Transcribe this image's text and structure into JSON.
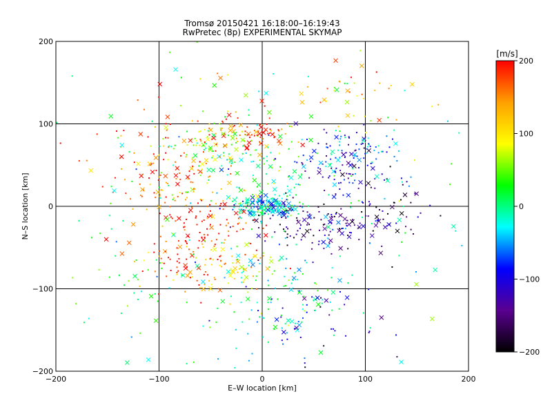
{
  "chart_data": {
    "type": "scatter",
    "title": "Tromsø 20150421 16:18:00–16:19:43",
    "subtitle": "RwPretec (8p) EXPERIMENTAL SKYMAP",
    "xlabel": "E–W location [km]",
    "ylabel": "N–S location [km]",
    "xlim": [
      -200,
      200
    ],
    "ylim": [
      -200,
      200
    ],
    "x_ticks": [
      "−200",
      "−100",
      "0",
      "100",
      "200"
    ],
    "y_ticks": [
      "−200",
      "−100",
      "0",
      "100",
      "200"
    ],
    "grid": true,
    "colorbar": {
      "label": "[m/s]",
      "range": [
        -200,
        200
      ],
      "ticks": [
        "200",
        "100",
        "0",
        "−100",
        "−200"
      ],
      "colormap": [
        "#000000",
        "#5a0090",
        "#0000ff",
        "#00ffff",
        "#00ff00",
        "#ffff00",
        "#ffa000",
        "#ff0000"
      ]
    },
    "series_summary": [
      {
        "marker": "cross",
        "note": "larger x markers"
      },
      {
        "marker": "dot",
        "note": "small point markers"
      }
    ],
    "clusters": [
      {
        "x": 0,
        "y": 0,
        "sx": 18,
        "sy": 6,
        "v": -20,
        "n": 120
      },
      {
        "x": 15,
        "y": -2,
        "sx": 10,
        "sy": 8,
        "v": -40,
        "n": 60
      },
      {
        "x": -45,
        "y": 75,
        "sx": 25,
        "sy": 25,
        "v": 50,
        "n": 90
      },
      {
        "x": -10,
        "y": 88,
        "sx": 22,
        "sy": 12,
        "v": 175,
        "n": 80
      },
      {
        "x": -105,
        "y": 60,
        "sx": 30,
        "sy": 35,
        "v": 170,
        "n": 90
      },
      {
        "x": -75,
        "y": 25,
        "sx": 25,
        "sy": 20,
        "v": 120,
        "n": 60
      },
      {
        "x": 75,
        "y": 50,
        "sx": 30,
        "sy": 25,
        "v": -110,
        "n": 90
      },
      {
        "x": 95,
        "y": 65,
        "sx": 20,
        "sy": 15,
        "v": -60,
        "n": 60
      },
      {
        "x": 40,
        "y": -20,
        "sx": 30,
        "sy": 15,
        "v": -170,
        "n": 70
      },
      {
        "x": 90,
        "y": -25,
        "sx": 30,
        "sy": 20,
        "v": -130,
        "n": 60
      },
      {
        "x": -45,
        "y": -20,
        "sx": 25,
        "sy": 15,
        "v": 185,
        "n": 70
      },
      {
        "x": -75,
        "y": -70,
        "sx": 25,
        "sy": 20,
        "v": 175,
        "n": 80
      },
      {
        "x": -25,
        "y": -75,
        "sx": 25,
        "sy": 20,
        "v": 100,
        "n": 60
      },
      {
        "x": 15,
        "y": -115,
        "sx": 30,
        "sy": 35,
        "v": -10,
        "n": 90
      },
      {
        "x": 0,
        "y": 35,
        "sx": 30,
        "sy": 25,
        "v": 20,
        "n": 50
      },
      {
        "x": 110,
        "y": -10,
        "sx": 25,
        "sy": 25,
        "v": -150,
        "n": 40
      },
      {
        "x": 0,
        "y": 0,
        "sx": 120,
        "sy": 120,
        "v": 0,
        "n": 180
      },
      {
        "x": 90,
        "y": 140,
        "sx": 30,
        "sy": 20,
        "v": 120,
        "n": 40
      },
      {
        "x": 60,
        "y": -140,
        "sx": 30,
        "sy": 30,
        "v": -120,
        "n": 35
      },
      {
        "x": -130,
        "y": -100,
        "sx": 30,
        "sy": 40,
        "v": 40,
        "n": 35
      }
    ]
  }
}
